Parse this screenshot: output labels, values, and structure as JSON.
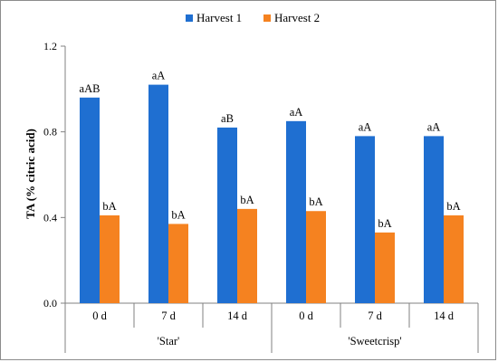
{
  "chart_data": {
    "type": "bar",
    "ylabel": "TA (% citric acid)",
    "ylim": [
      0,
      1.2
    ],
    "yticks": [
      "0.0",
      "0.4",
      "0.8",
      "1.2"
    ],
    "ytick_values": [
      0,
      0.4,
      0.8,
      1.2
    ],
    "grid": "none",
    "legend_position": "top",
    "categories": [
      "0 d",
      "7 d",
      "14 d",
      "0 d",
      "7 d",
      "14 d"
    ],
    "groups": [
      {
        "label": "'Star'",
        "span": 3
      },
      {
        "label": "'Sweetcrisp'",
        "span": 3
      }
    ],
    "series": [
      {
        "name": "Harvest 1",
        "color": "#1f6fd1",
        "values": [
          0.96,
          1.02,
          0.82,
          0.85,
          0.78,
          0.78
        ],
        "labels": [
          "aAB",
          "aA",
          "aB",
          "aA",
          "aA",
          "aA"
        ]
      },
      {
        "name": "Harvest 2",
        "color": "#f58220",
        "values": [
          0.41,
          0.37,
          0.44,
          0.43,
          0.33,
          0.41
        ],
        "labels": [
          "bA",
          "bA",
          "bA",
          "bA",
          "bA",
          "bA"
        ]
      }
    ]
  }
}
